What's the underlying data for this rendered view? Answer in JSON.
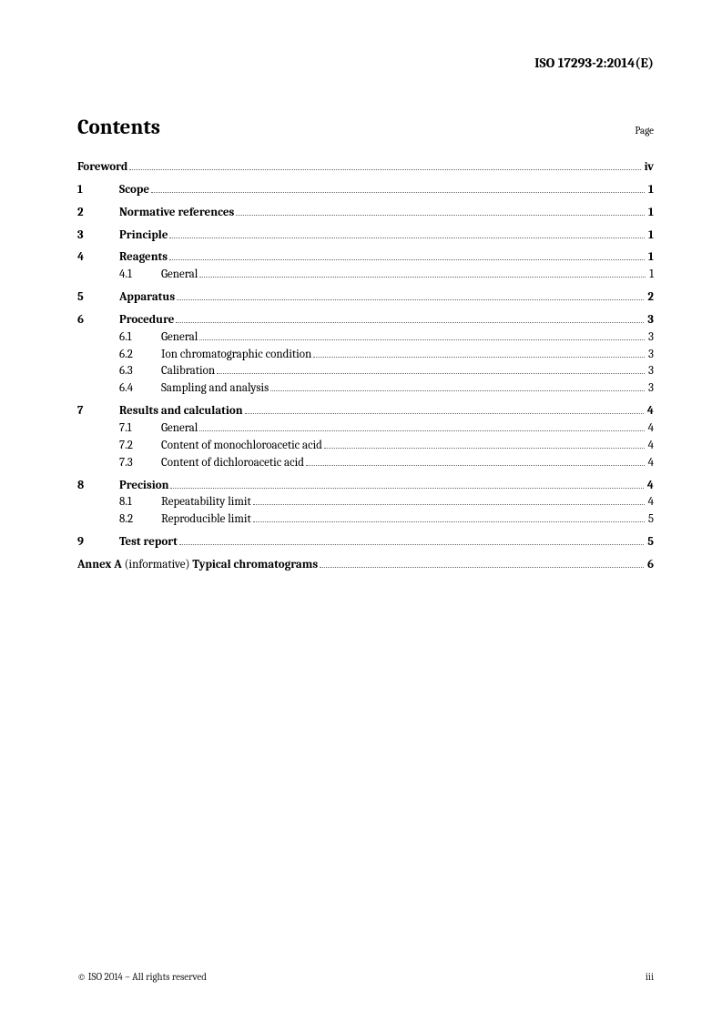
{
  "header": {
    "doc_id": "ISO 17293-2:2014(E)"
  },
  "title": {
    "contents": "Contents",
    "page_label": "Page"
  },
  "toc": {
    "foreword": {
      "title": "Foreword",
      "page": "iv"
    },
    "sections": [
      {
        "num": "1",
        "title": "Scope",
        "page": "1",
        "subs": []
      },
      {
        "num": "2",
        "title": "Normative references",
        "page": "1",
        "subs": []
      },
      {
        "num": "3",
        "title": "Principle",
        "page": "1",
        "subs": []
      },
      {
        "num": "4",
        "title": "Reagents",
        "page": "1",
        "subs": [
          {
            "num": "4.1",
            "title": "General",
            "page": "1"
          }
        ]
      },
      {
        "num": "5",
        "title": "Apparatus",
        "page": "2",
        "subs": []
      },
      {
        "num": "6",
        "title": "Procedure",
        "page": "3",
        "subs": [
          {
            "num": "6.1",
            "title": "General",
            "page": "3"
          },
          {
            "num": "6.2",
            "title": "Ion chromatographic condition",
            "page": "3"
          },
          {
            "num": "6.3",
            "title": "Calibration",
            "page": "3"
          },
          {
            "num": "6.4",
            "title": "Sampling and analysis",
            "page": "3"
          }
        ]
      },
      {
        "num": "7",
        "title": "Results and calculation",
        "page": "4",
        "subs": [
          {
            "num": "7.1",
            "title": "General",
            "page": "4"
          },
          {
            "num": "7.2",
            "title": "Content of monochloroacetic acid",
            "page": "4"
          },
          {
            "num": "7.3",
            "title": "Content of dichloroacetic acid",
            "page": "4"
          }
        ]
      },
      {
        "num": "8",
        "title": "Precision",
        "page": "4",
        "subs": [
          {
            "num": "8.1",
            "title": "Repeatability limit",
            "page": "4"
          },
          {
            "num": "8.2",
            "title": "Reproducible limit",
            "page": "5"
          }
        ]
      },
      {
        "num": "9",
        "title": "Test report",
        "page": "5",
        "subs": []
      }
    ],
    "annex": {
      "label": "Annex A",
      "info": "(informative)",
      "title": "Typical chromatograms",
      "page": "6"
    }
  },
  "footer": {
    "copyright": "© ISO 2014 – All rights reserved",
    "page_num": "iii"
  }
}
